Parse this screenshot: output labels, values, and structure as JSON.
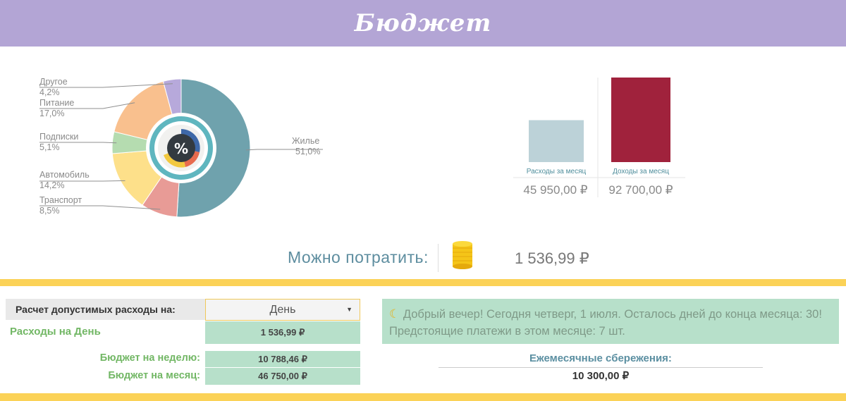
{
  "header": {
    "title": "Бюджет"
  },
  "expenses_pie": {
    "type": "pie",
    "categories": [
      {
        "name": "Жилье",
        "value": 51.0,
        "label": "Жилье",
        "pct_label": "51,0%",
        "color": "#6fa2ad"
      },
      {
        "name": "Транспорт",
        "value": 8.5,
        "label": "Транспорт",
        "pct_label": "8,5%",
        "color": "#e89b96"
      },
      {
        "name": "Автомобиль",
        "value": 14.2,
        "label": "Автомобиль",
        "pct_label": "14,2%",
        "color": "#fde08a"
      },
      {
        "name": "Подписки",
        "value": 5.1,
        "label": "Подписки",
        "pct_label": "5,1%",
        "color": "#b5dcb0"
      },
      {
        "name": "Питание",
        "value": 17.0,
        "label": "Питание",
        "pct_label": "17,0%",
        "color": "#f9c08e"
      },
      {
        "name": "Другое",
        "value": 4.2,
        "label": "Другое",
        "pct_label": "4,2%",
        "color": "#b7a9db"
      }
    ],
    "center_icon": "percent-icon"
  },
  "chart_data": {
    "type": "bar",
    "categories": [
      "Расходы за месяц",
      "Доходы за месяц"
    ],
    "values": [
      45950,
      92700
    ],
    "value_labels": [
      "45 950,00 ₽",
      "92 700,00 ₽"
    ],
    "colors": [
      "#bcd2d8",
      "#a0223c"
    ]
  },
  "spendable": {
    "label": "Можно потратить:",
    "value": "1 536,99 ₽",
    "icon": "coins-icon"
  },
  "calc": {
    "label": "Расчет допустимых расходы на:",
    "selected": "День",
    "daily_label": "Расходы на День",
    "daily_value": "1 536,99 ₽",
    "week_label": "Бюджет на неделю:",
    "week_value": "10 788,46 ₽",
    "month_label": "Бюджет на месяц:",
    "month_value": "46 750,00 ₽"
  },
  "greeting": {
    "icon": "moon-icon",
    "text": "Добрый вечер! Сегодня четверг, 1 июля. Осталось дней до конца месяца: 30! Предстоящие платежи в этом месяце: 7 шт."
  },
  "savings": {
    "title": "Ежемесячные сбережения:",
    "value": "10 300,00 ₽"
  },
  "colors": {
    "header": "#b3a5d5",
    "accent_yellow": "#fbd257",
    "green_cell": "#b7e0ca",
    "green_text": "#72b765"
  }
}
